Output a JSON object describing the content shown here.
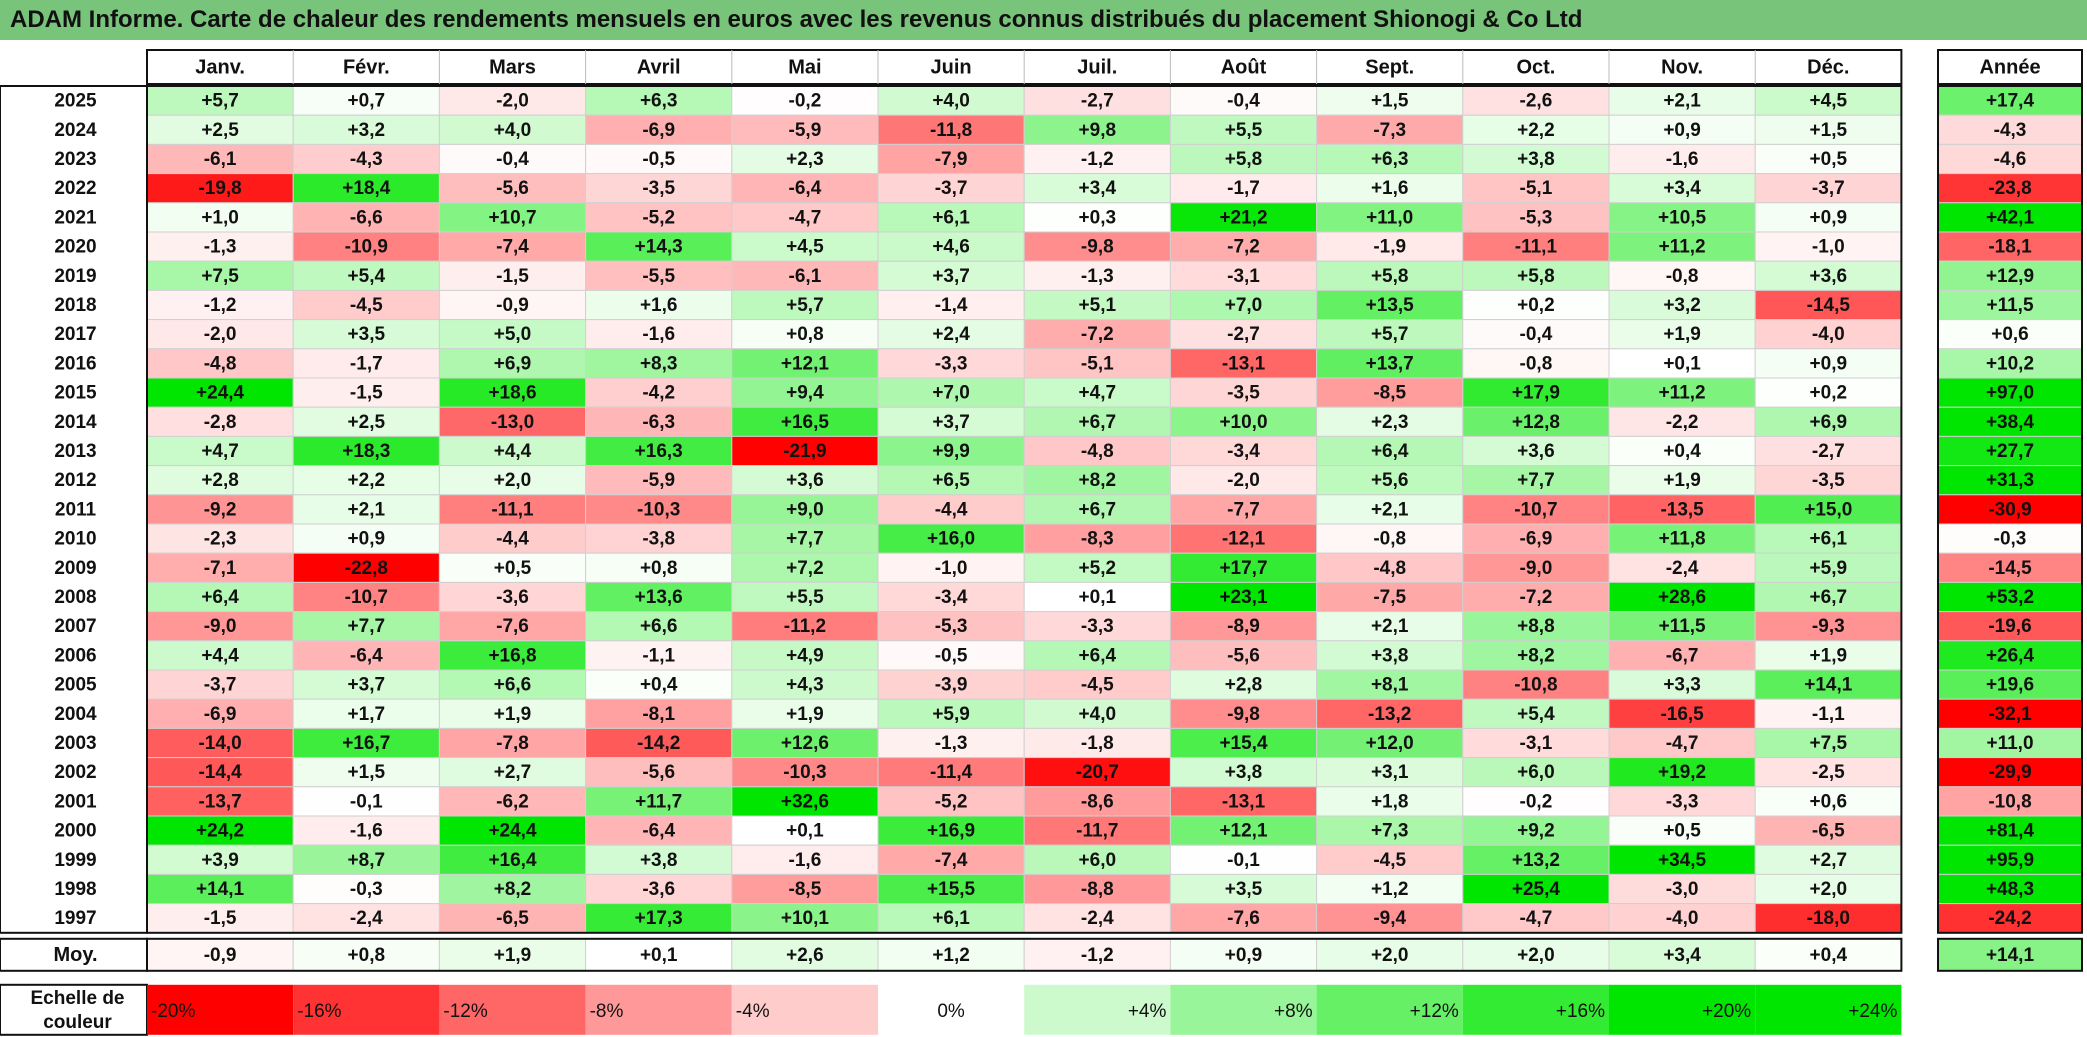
{
  "title": "ADAM Informe. Carte de chaleur des rendements mensuels en euros avec les revenus connus distribués du placement Shionogi & Co Ltd",
  "colors": {
    "title_bg": "#79c47b",
    "negative_max": "#ff0000",
    "neutral": "#ffffff",
    "positive_max": "#00e600"
  },
  "chart_data": {
    "type": "heatmap",
    "months": [
      "Janv.",
      "Févr.",
      "Mars",
      "Avril",
      "Mai",
      "Juin",
      "Juil.",
      "Août",
      "Sept.",
      "Oct.",
      "Nov.",
      "Déc."
    ],
    "year_header": "Année",
    "rows": [
      {
        "year": "2025",
        "values": [
          "+5,7",
          "+0,7",
          "-2,0",
          "+6,3",
          "-0,2",
          "+4,0",
          "-2,7",
          "-0,4",
          "+1,5",
          "-2,6",
          "+2,1",
          "+4,5"
        ],
        "annual": "+17,4"
      },
      {
        "year": "2024",
        "values": [
          "+2,5",
          "+3,2",
          "+4,0",
          "-6,9",
          "-5,9",
          "-11,8",
          "+9,8",
          "+5,5",
          "-7,3",
          "+2,2",
          "+0,9",
          "+1,5"
        ],
        "annual": "-4,3"
      },
      {
        "year": "2023",
        "values": [
          "-6,1",
          "-4,3",
          "-0,4",
          "-0,5",
          "+2,3",
          "-7,9",
          "-1,2",
          "+5,8",
          "+6,3",
          "+3,8",
          "-1,6",
          "+0,5"
        ],
        "annual": "-4,6"
      },
      {
        "year": "2022",
        "values": [
          "-19,8",
          "+18,4",
          "-5,6",
          "-3,5",
          "-6,4",
          "-3,7",
          "+3,4",
          "-1,7",
          "+1,6",
          "-5,1",
          "+3,4",
          "-3,7"
        ],
        "annual": "-23,8"
      },
      {
        "year": "2021",
        "values": [
          "+1,0",
          "-6,6",
          "+10,7",
          "-5,2",
          "-4,7",
          "+6,1",
          "+0,3",
          "+21,2",
          "+11,0",
          "-5,3",
          "+10,5",
          "+0,9"
        ],
        "annual": "+42,1"
      },
      {
        "year": "2020",
        "values": [
          "-1,3",
          "-10,9",
          "-7,4",
          "+14,3",
          "+4,5",
          "+4,6",
          "-9,8",
          "-7,2",
          "-1,9",
          "-11,1",
          "+11,2",
          "-1,0"
        ],
        "annual": "-18,1"
      },
      {
        "year": "2019",
        "values": [
          "+7,5",
          "+5,4",
          "-1,5",
          "-5,5",
          "-6,1",
          "+3,7",
          "-1,3",
          "-3,1",
          "+5,8",
          "+5,8",
          "-0,8",
          "+3,6"
        ],
        "annual": "+12,9"
      },
      {
        "year": "2018",
        "values": [
          "-1,2",
          "-4,5",
          "-0,9",
          "+1,6",
          "+5,7",
          "-1,4",
          "+5,1",
          "+7,0",
          "+13,5",
          "+0,2",
          "+3,2",
          "-14,5"
        ],
        "annual": "+11,5"
      },
      {
        "year": "2017",
        "values": [
          "-2,0",
          "+3,5",
          "+5,0",
          "-1,6",
          "+0,8",
          "+2,4",
          "-7,2",
          "-2,7",
          "+5,7",
          "-0,4",
          "+1,9",
          "-4,0"
        ],
        "annual": "+0,6"
      },
      {
        "year": "2016",
        "values": [
          "-4,8",
          "-1,7",
          "+6,9",
          "+8,3",
          "+12,1",
          "-3,3",
          "-5,1",
          "-13,1",
          "+13,7",
          "-0,8",
          "+0,1",
          "+0,9"
        ],
        "annual": "+10,2"
      },
      {
        "year": "2015",
        "values": [
          "+24,4",
          "-1,5",
          "+18,6",
          "-4,2",
          "+9,4",
          "+7,0",
          "+4,7",
          "-3,5",
          "-8,5",
          "+17,9",
          "+11,2",
          "+0,2"
        ],
        "annual": "+97,0"
      },
      {
        "year": "2014",
        "values": [
          "-2,8",
          "+2,5",
          "-13,0",
          "-6,3",
          "+16,5",
          "+3,7",
          "+6,7",
          "+10,0",
          "+2,3",
          "+12,8",
          "-2,2",
          "+6,9"
        ],
        "annual": "+38,4"
      },
      {
        "year": "2013",
        "values": [
          "+4,7",
          "+18,3",
          "+4,4",
          "+16,3",
          "-21,9",
          "+9,9",
          "-4,8",
          "-3,4",
          "+6,4",
          "+3,6",
          "+0,4",
          "-2,7"
        ],
        "annual": "+27,7"
      },
      {
        "year": "2012",
        "values": [
          "+2,8",
          "+2,2",
          "+2,0",
          "-5,9",
          "+3,6",
          "+6,5",
          "+8,2",
          "-2,0",
          "+5,6",
          "+7,7",
          "+1,9",
          "-3,5"
        ],
        "annual": "+31,3"
      },
      {
        "year": "2011",
        "values": [
          "-9,2",
          "+2,1",
          "-11,1",
          "-10,3",
          "+9,0",
          "-4,4",
          "+6,7",
          "-7,7",
          "+2,1",
          "-10,7",
          "-13,5",
          "+15,0"
        ],
        "annual": "-30,9"
      },
      {
        "year": "2010",
        "values": [
          "-2,3",
          "+0,9",
          "-4,4",
          "-3,8",
          "+7,7",
          "+16,0",
          "-8,3",
          "-12,1",
          "-0,8",
          "-6,9",
          "+11,8",
          "+6,1"
        ],
        "annual": "-0,3"
      },
      {
        "year": "2009",
        "values": [
          "-7,1",
          "-22,8",
          "+0,5",
          "+0,8",
          "+7,2",
          "-1,0",
          "+5,2",
          "+17,7",
          "-4,8",
          "-9,0",
          "-2,4",
          "+5,9"
        ],
        "annual": "-14,5"
      },
      {
        "year": "2008",
        "values": [
          "+6,4",
          "-10,7",
          "-3,6",
          "+13,6",
          "+5,5",
          "-3,4",
          "+0,1",
          "+23,1",
          "-7,5",
          "-7,2",
          "+28,6",
          "+6,7"
        ],
        "annual": "+53,2"
      },
      {
        "year": "2007",
        "values": [
          "-9,0",
          "+7,7",
          "-7,6",
          "+6,6",
          "-11,2",
          "-5,3",
          "-3,3",
          "-8,9",
          "+2,1",
          "+8,8",
          "+11,5",
          "-9,3"
        ],
        "annual": "-19,6"
      },
      {
        "year": "2006",
        "values": [
          "+4,4",
          "-6,4",
          "+16,8",
          "-1,1",
          "+4,9",
          "-0,5",
          "+6,4",
          "-5,6",
          "+3,8",
          "+8,2",
          "-6,7",
          "+1,9"
        ],
        "annual": "+26,4"
      },
      {
        "year": "2005",
        "values": [
          "-3,7",
          "+3,7",
          "+6,6",
          "+0,4",
          "+4,3",
          "-3,9",
          "-4,5",
          "+2,8",
          "+8,1",
          "-10,8",
          "+3,3",
          "+14,1"
        ],
        "annual": "+19,6"
      },
      {
        "year": "2004",
        "values": [
          "-6,9",
          "+1,7",
          "+1,9",
          "-8,1",
          "+1,9",
          "+5,9",
          "+4,0",
          "-9,8",
          "-13,2",
          "+5,4",
          "-16,5",
          "-1,1"
        ],
        "annual": "-32,1"
      },
      {
        "year": "2003",
        "values": [
          "-14,0",
          "+16,7",
          "-7,8",
          "-14,2",
          "+12,6",
          "-1,3",
          "-1,8",
          "+15,4",
          "+12,0",
          "-3,1",
          "-4,7",
          "+7,5"
        ],
        "annual": "+11,0"
      },
      {
        "year": "2002",
        "values": [
          "-14,4",
          "+1,5",
          "+2,7",
          "-5,6",
          "-10,3",
          "-11,4",
          "-20,7",
          "+3,8",
          "+3,1",
          "+6,0",
          "+19,2",
          "-2,5"
        ],
        "annual": "-29,9"
      },
      {
        "year": "2001",
        "values": [
          "-13,7",
          "-0,1",
          "-6,2",
          "+11,7",
          "+32,6",
          "-5,2",
          "-8,6",
          "-13,1",
          "+1,8",
          "-0,2",
          "-3,3",
          "+0,6"
        ],
        "annual": "-10,8"
      },
      {
        "year": "2000",
        "values": [
          "+24,2",
          "-1,6",
          "+24,4",
          "-6,4",
          "+0,1",
          "+16,9",
          "-11,7",
          "+12,1",
          "+7,3",
          "+9,2",
          "+0,5",
          "-6,5"
        ],
        "annual": "+81,4"
      },
      {
        "year": "1999",
        "values": [
          "+3,9",
          "+8,7",
          "+16,4",
          "+3,8",
          "-1,6",
          "-7,4",
          "+6,0",
          "-0,1",
          "-4,5",
          "+13,2",
          "+34,5",
          "+2,7"
        ],
        "annual": "+95,9"
      },
      {
        "year": "1998",
        "values": [
          "+14,1",
          "-0,3",
          "+8,2",
          "-3,6",
          "-8,5",
          "+15,5",
          "-8,8",
          "+3,5",
          "+1,2",
          "+25,4",
          "-3,0",
          "+2,0"
        ],
        "annual": "+48,3"
      },
      {
        "year": "1997",
        "values": [
          "-1,5",
          "-2,4",
          "-6,5",
          "+17,3",
          "+10,1",
          "+6,1",
          "-2,4",
          "-7,6",
          "-9,4",
          "-4,7",
          "-4,0",
          "-18,0"
        ],
        "annual": "-24,2"
      }
    ],
    "average": {
      "label": "Moy.",
      "values": [
        "-0,9",
        "+0,8",
        "+1,9",
        "+0,1",
        "+2,6",
        "+1,2",
        "-1,2",
        "+0,9",
        "+2,0",
        "+2,0",
        "+3,4",
        "+0,4"
      ],
      "annual": "+14,1"
    },
    "scale": {
      "label_line1": "Echelle de",
      "label_line2": "couleur",
      "steps": [
        "-20%",
        "-16%",
        "-12%",
        "-8%",
        "-4%",
        "0%",
        "+4%",
        "+8%",
        "+12%",
        "+16%",
        "+20%",
        "+24%"
      ]
    }
  }
}
